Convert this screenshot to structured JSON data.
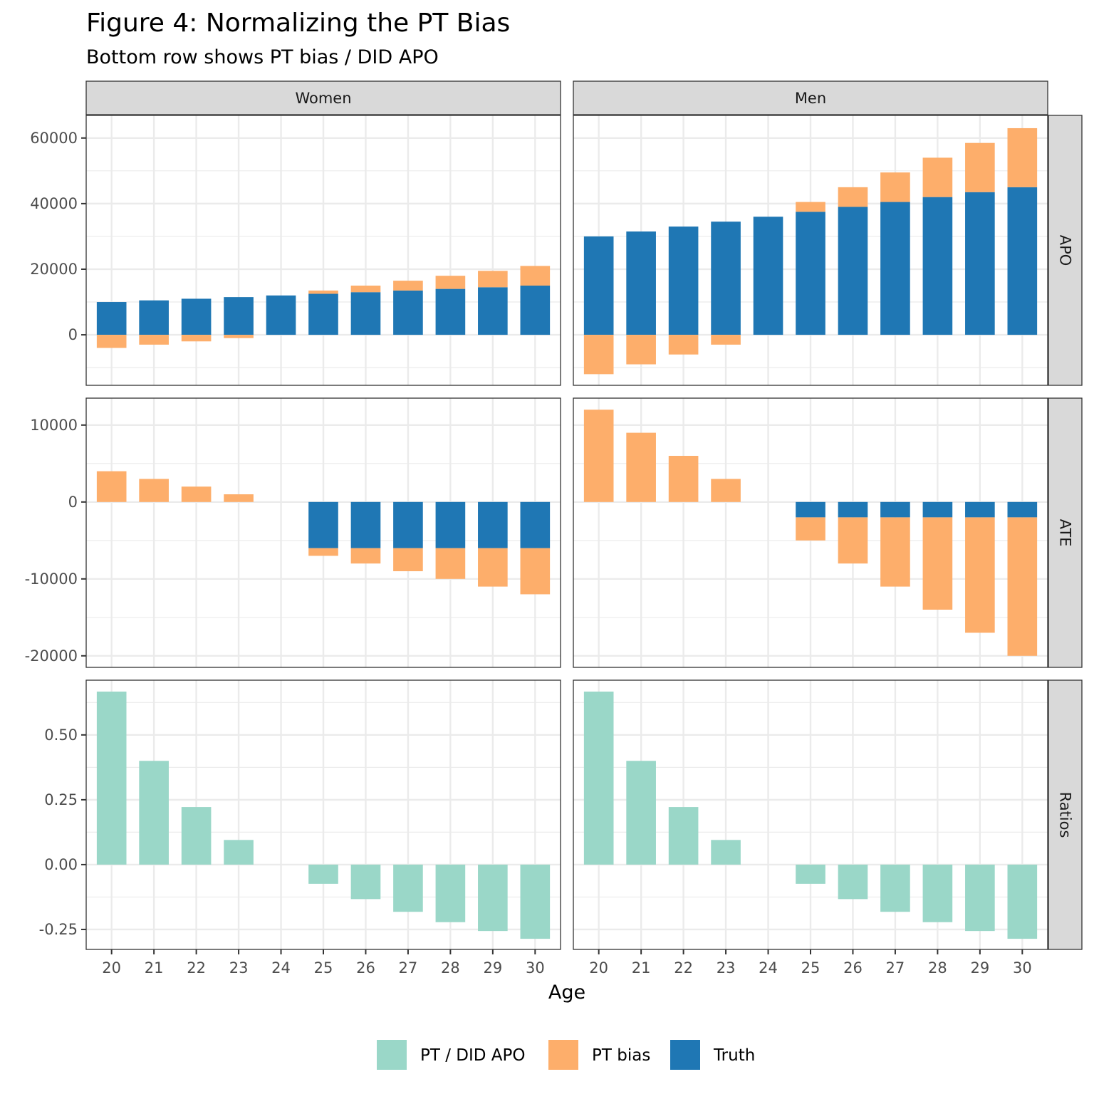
{
  "chart_data": {
    "type": "bar",
    "title": "Figure 4: Normalizing the PT Bias",
    "subtitle": "Bottom row shows PT bias / DID APO",
    "xlabel": "Age",
    "ylabel": "",
    "x": [
      20,
      21,
      22,
      23,
      24,
      25,
      26,
      27,
      28,
      29,
      30
    ],
    "x_tick_labels": [
      "20",
      "21",
      "22",
      "23",
      "24",
      "25",
      "26",
      "27",
      "28",
      "29",
      "30"
    ],
    "facet_columns": [
      "Women",
      "Men"
    ],
    "facet_rows": [
      "APO",
      "ATE",
      "Ratios"
    ],
    "stacked": true,
    "grid": true,
    "legend_position": "bottom",
    "legend": [
      {
        "label": "PT / DID APO",
        "color": "#9AD7C8"
      },
      {
        "label": "PT bias",
        "color": "#FDAE6B"
      },
      {
        "label": "Truth",
        "color": "#1F77B4"
      }
    ],
    "rows": {
      "APO": {
        "ylim": [
          -15400,
          66900
        ],
        "y_ticks": [
          0,
          20000,
          40000,
          60000
        ],
        "y_tick_labels": [
          "0",
          "20000",
          "40000",
          "60000"
        ],
        "y_minor": [
          -10000,
          10000,
          30000,
          50000
        ]
      },
      "ATE": {
        "ylim": [
          -21500,
          13500
        ],
        "y_ticks": [
          -20000,
          -10000,
          0,
          10000
        ],
        "y_tick_labels": [
          "-20000",
          "-10000",
          "0",
          "10000"
        ],
        "y_minor": [
          -15000,
          -5000,
          5000
        ]
      },
      "Ratios": {
        "ylim": [
          -0.327,
          0.711
        ],
        "y_ticks": [
          -0.25,
          0,
          0.25,
          0.5
        ],
        "y_tick_labels": [
          "-0.25",
          "0.00",
          "0.25",
          "0.50"
        ],
        "y_minor": [
          -0.125,
          0.125,
          0.375,
          0.625
        ]
      }
    },
    "panels": [
      {
        "column": "Women",
        "row": "APO",
        "series": [
          {
            "name": "Truth",
            "values": [
              10000,
              10500,
              11000,
              11500,
              12000,
              12500,
              13000,
              13500,
              14000,
              14500,
              15000
            ]
          },
          {
            "name": "PT bias",
            "values": [
              -4000,
              -3000,
              -2000,
              -1000,
              0,
              1000,
              2000,
              3000,
              4000,
              5000,
              6000
            ]
          }
        ]
      },
      {
        "column": "Men",
        "row": "APO",
        "series": [
          {
            "name": "Truth",
            "values": [
              30000,
              31500,
              33000,
              34500,
              36000,
              37500,
              39000,
              40500,
              42000,
              43500,
              45000
            ]
          },
          {
            "name": "PT bias",
            "values": [
              -12000,
              -9000,
              -6000,
              -3000,
              0,
              3000,
              6000,
              9000,
              12000,
              15000,
              18000
            ]
          }
        ]
      },
      {
        "column": "Women",
        "row": "ATE",
        "series": [
          {
            "name": "Truth",
            "values": [
              0,
              0,
              0,
              0,
              0,
              -6000,
              -6000,
              -6000,
              -6000,
              -6000,
              -6000
            ]
          },
          {
            "name": "PT bias",
            "values": [
              4000,
              3000,
              2000,
              1000,
              0,
              -1000,
              -2000,
              -3000,
              -4000,
              -5000,
              -6000
            ]
          }
        ]
      },
      {
        "column": "Men",
        "row": "ATE",
        "series": [
          {
            "name": "Truth",
            "values": [
              0,
              0,
              0,
              0,
              0,
              -2000,
              -2000,
              -2000,
              -2000,
              -2000,
              -2000
            ]
          },
          {
            "name": "PT bias",
            "values": [
              12000,
              9000,
              6000,
              3000,
              0,
              -3000,
              -6000,
              -9000,
              -12000,
              -15000,
              -18000
            ]
          }
        ]
      },
      {
        "column": "Women",
        "row": "Ratios",
        "series": [
          {
            "name": "PT / DID APO",
            "values": [
              0.667,
              0.4,
              0.222,
              0.095,
              0,
              -0.074,
              -0.133,
              -0.182,
              -0.222,
              -0.256,
              -0.286
            ]
          }
        ]
      },
      {
        "column": "Men",
        "row": "Ratios",
        "series": [
          {
            "name": "PT / DID APO",
            "values": [
              0.667,
              0.4,
              0.222,
              0.095,
              0,
              -0.074,
              -0.133,
              -0.182,
              -0.222,
              -0.256,
              -0.286
            ]
          }
        ]
      }
    ]
  }
}
